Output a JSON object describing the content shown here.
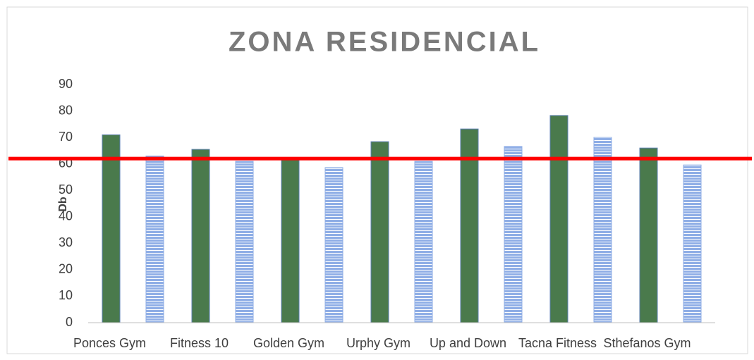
{
  "chart_data": {
    "type": "bar",
    "title": "ZONA RESIDENCIAL",
    "y_label": "Db",
    "categories": [
      "Ponces Gym",
      "Fitness 10",
      "Golden Gym",
      "Urphy Gym",
      "Up and Down",
      "Tacna Fitness",
      "Sthefanos Gym"
    ],
    "series": [
      {
        "color": "#4a7a4c",
        "values": [
          71,
          65.5,
          62.3,
          68.4,
          73.2,
          78.3,
          66
        ]
      },
      {
        "color": "#8faee6",
        "pattern": "striped",
        "values": [
          63,
          61,
          58.6,
          61,
          66.6,
          70,
          59.6
        ]
      }
    ],
    "reference_line": {
      "value": 62,
      "color": "#ff0000"
    },
    "ylim": [
      0,
      90
    ],
    "yticks": [
      0,
      10,
      20,
      30,
      40,
      50,
      60,
      70,
      80,
      90
    ],
    "grid": false
  }
}
